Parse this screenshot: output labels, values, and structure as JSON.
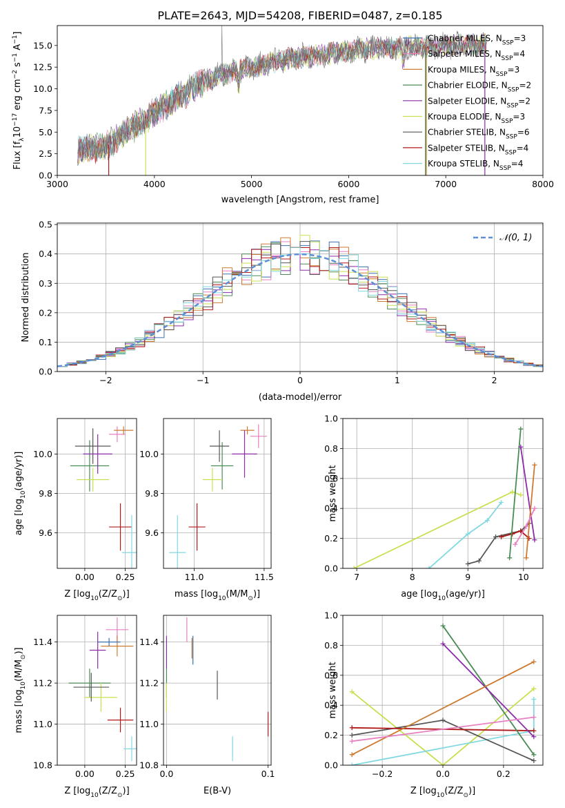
{
  "figure": {
    "title": "PLATE=2643, MJD=54208, FIBERID=0487, z=0.185"
  },
  "colors": {
    "chabrier_miles": "#3a6fb0",
    "salpeter_miles": "#e87fc0",
    "kroupa_miles": "#cc7a30",
    "chabrier_elodie": "#4a8a55",
    "salpeter_elodie": "#8a2aa8",
    "kroupa_elodie": "#c8e050",
    "chabrier_stelib": "#555555",
    "salpeter_stelib": "#b01818",
    "kroupa_stelib": "#80d8e0",
    "gauss": "#5b8fd6",
    "grid": "#b0b0b0"
  },
  "chart_data": [
    {
      "id": "spectrum",
      "type": "line",
      "xlabel": "wavelength [Angstrom, rest frame]",
      "ylabel": "Flux [f",
      "ylabel_sub": "λ",
      "ylabel_mid": "10",
      "ylabel_sup1": "−17",
      "ylabel_rest": " erg cm",
      "ylabel_sup2": "−2",
      "ylabel_rest2": " s",
      "ylabel_sup3": "−1",
      "ylabel_rest3": " A",
      "ylabel_sup4": "−1",
      "ylabel_end": "]",
      "xlim": [
        3000,
        8000
      ],
      "ylim": [
        0,
        17.3
      ],
      "xticks": [
        3000,
        4000,
        5000,
        6000,
        7000,
        8000
      ],
      "yticks": [
        0.0,
        2.5,
        5.0,
        7.5,
        10.0,
        12.5,
        15.0
      ],
      "ytick_labels": [
        "0.0",
        "2.5",
        "5.0",
        "7.5",
        "10.0",
        "12.5",
        "15.0"
      ],
      "continuum": {
        "x": [
          3200,
          3300,
          3500,
          3700,
          3900,
          4000,
          4200,
          4400,
          4600,
          4800,
          5000,
          5200,
          5400,
          5600,
          5800,
          6000,
          6200,
          6400,
          6600,
          6800,
          7000,
          7200,
          7400
        ],
        "y": [
          3.0,
          3.0,
          3.3,
          5.0,
          6.3,
          7.3,
          8.6,
          10.2,
          11.3,
          12.0,
          12.5,
          13.0,
          13.5,
          13.8,
          14.1,
          14.4,
          14.6,
          14.7,
          14.8,
          14.9,
          15.0,
          15.0,
          15.1
        ]
      },
      "legend": [
        {
          "imf": "Chabrier",
          "lib": "MILES",
          "n": "3",
          "color": "chabrier_miles"
        },
        {
          "imf": "Salpeter",
          "lib": "MILES",
          "n": "4",
          "color": "salpeter_miles"
        },
        {
          "imf": "Kroupa",
          "lib": "MILES",
          "n": "3",
          "color": "kroupa_miles"
        },
        {
          "imf": "Chabrier",
          "lib": "ELODIE",
          "n": "2",
          "color": "chabrier_elodie"
        },
        {
          "imf": "Salpeter",
          "lib": "ELODIE",
          "n": "2",
          "color": "salpeter_elodie"
        },
        {
          "imf": "Kroupa",
          "lib": "ELODIE",
          "n": "3",
          "color": "kroupa_elodie"
        },
        {
          "imf": "Chabrier",
          "lib": "STELIB",
          "n": "6",
          "color": "chabrier_stelib"
        },
        {
          "imf": "Salpeter",
          "lib": "STELIB",
          "n": "4",
          "color": "salpeter_stelib"
        },
        {
          "imf": "Kroupa",
          "lib": "STELIB",
          "n": "4",
          "color": "kroupa_stelib"
        }
      ],
      "legend_sub": "SSP",
      "legend_placement": "right"
    },
    {
      "id": "residuals",
      "type": "line",
      "xlabel": "(data-model)/error",
      "ylabel": "Normed distribution",
      "xlim": [
        -2.5,
        2.5
      ],
      "ylim": [
        0,
        0.505
      ],
      "xticks": [
        -2,
        -1,
        0,
        1,
        2
      ],
      "xtick_labels": [
        "−2",
        "−1",
        "0",
        "1",
        "2"
      ],
      "yticks": [
        0.0,
        0.1,
        0.2,
        0.3,
        0.4,
        0.5
      ],
      "ytick_labels": [
        "0.0",
        "0.1",
        "0.2",
        "0.3",
        "0.4",
        "0.5"
      ],
      "bin_width": 0.1,
      "legend_label": "𝒩(0, 1)",
      "legend_placement": "top-right"
    },
    {
      "id": "z_age",
      "type": "scatter",
      "xlabel": "Z [log",
      "xlabel_sub": "10",
      "xlabel_mid": "(Z/Z",
      "xlabel_sub2": "⊙",
      "xlabel_end": ")]",
      "ylabel": "age  [log",
      "ylabel_sub": "10",
      "ylabel_end": "(age/yr)]",
      "xlim": [
        -0.17,
        0.32
      ],
      "ylim": [
        9.42,
        10.18
      ],
      "xticks": [
        0.0,
        0.25
      ],
      "xtick_labels": [
        "0.00",
        "0.25"
      ],
      "yticks": [
        9.6,
        9.8,
        10.0
      ],
      "ytick_labels": [
        "9.6",
        "9.8",
        "10.0"
      ],
      "points": [
        {
          "color": "salpeter_miles",
          "x": 0.2,
          "xerr": 0.05,
          "y": 10.1,
          "yerr": 0.04
        },
        {
          "color": "kroupa_miles",
          "x": 0.24,
          "xerr": 0.06,
          "y": 10.12,
          "yerr": 0.02
        },
        {
          "color": "chabrier_elodie",
          "x": 0.03,
          "xerr": 0.12,
          "y": 9.94,
          "yerr": 0.13
        },
        {
          "color": "salpeter_elodie",
          "x": 0.08,
          "xerr": 0.09,
          "y": 10.0,
          "yerr": 0.1
        },
        {
          "color": "kroupa_elodie",
          "x": 0.05,
          "xerr": 0.1,
          "y": 9.87,
          "yerr": 0.06
        },
        {
          "color": "chabrier_stelib",
          "x": 0.05,
          "xerr": 0.11,
          "y": 10.04,
          "yerr": 0.09
        },
        {
          "color": "salpeter_stelib",
          "x": 0.22,
          "xerr": 0.07,
          "y": 9.63,
          "yerr": 0.12
        },
        {
          "color": "kroupa_stelib",
          "x": 0.29,
          "xerr": 0.06,
          "y": 9.5,
          "yerr": 0.19
        }
      ]
    },
    {
      "id": "mass_age",
      "type": "scatter",
      "xlabel": "mass [log",
      "xlabel_sub": "10",
      "xlabel_end": "(M/M",
      "xlabel_sub2": "⊙",
      "xlabel_end2": ")]",
      "xlim": [
        10.78,
        11.55
      ],
      "ylim": [
        9.42,
        10.18
      ],
      "xticks": [
        11.0,
        11.5
      ],
      "xtick_labels": [
        "11.0",
        "11.5"
      ],
      "yticks": [
        9.6,
        9.8,
        10.0
      ],
      "ytick_labels": [
        "9.6",
        "9.8",
        "10.0"
      ],
      "points": [
        {
          "color": "salpeter_miles",
          "x": 11.46,
          "xerr": 0.06,
          "y": 10.09,
          "yerr": 0.06
        },
        {
          "color": "kroupa_miles",
          "x": 11.38,
          "xerr": 0.05,
          "y": 10.12,
          "yerr": 0.02
        },
        {
          "color": "chabrier_elodie",
          "x": 11.2,
          "xerr": 0.08,
          "y": 9.94,
          "yerr": 0.12
        },
        {
          "color": "salpeter_elodie",
          "x": 11.36,
          "xerr": 0.09,
          "y": 10.0,
          "yerr": 0.12
        },
        {
          "color": "kroupa_elodie",
          "x": 11.13,
          "xerr": 0.07,
          "y": 9.87,
          "yerr": 0.06
        },
        {
          "color": "chabrier_stelib",
          "x": 11.18,
          "xerr": 0.07,
          "y": 10.04,
          "yerr": 0.08
        },
        {
          "color": "salpeter_stelib",
          "x": 11.02,
          "xerr": 0.06,
          "y": 9.63,
          "yerr": 0.12
        },
        {
          "color": "kroupa_stelib",
          "x": 10.88,
          "xerr": 0.06,
          "y": 9.5,
          "yerr": 0.19
        }
      ]
    },
    {
      "id": "weight_age",
      "type": "line",
      "xlabel": "age  [log",
      "xlabel_sub": "10",
      "xlabel_end": "(age/yr)]",
      "ylabel": "mass weight",
      "xlim": [
        6.75,
        10.35
      ],
      "ylim": [
        0,
        1.0
      ],
      "xticks": [
        7,
        8,
        9,
        10
      ],
      "xtick_labels": [
        "7",
        "8",
        "9",
        "10"
      ],
      "yticks": [
        0.0,
        0.2,
        0.4,
        0.6,
        0.8,
        1.0
      ],
      "ytick_labels": [
        "0.0",
        "0.2",
        "0.4",
        "0.6",
        "0.8",
        "1.0"
      ],
      "series": [
        {
          "color": "kroupa_elodie",
          "x": [
            6.95,
            9.8,
            9.95
          ],
          "y": [
            0.0,
            0.51,
            0.49
          ]
        },
        {
          "color": "kroupa_stelib",
          "x": [
            8.3,
            9.0,
            9.35,
            9.6
          ],
          "y": [
            0.0,
            0.23,
            0.32,
            0.44
          ]
        },
        {
          "color": "chabrier_stelib",
          "x": [
            9.0,
            9.2,
            9.5,
            9.95,
            10.1
          ],
          "y": [
            0.03,
            0.05,
            0.21,
            0.25,
            0.3
          ]
        },
        {
          "color": "salpeter_stelib",
          "x": [
            9.6,
            9.8,
            9.95,
            10.1
          ],
          "y": [
            0.21,
            0.23,
            0.25,
            0.2
          ]
        },
        {
          "color": "chabrier_elodie",
          "x": [
            9.75,
            9.95
          ],
          "y": [
            0.07,
            0.93
          ]
        },
        {
          "color": "salpeter_elodie",
          "x": [
            9.95,
            10.2
          ],
          "y": [
            0.81,
            0.19
          ]
        },
        {
          "color": "kroupa_miles",
          "x": [
            10.05,
            10.2
          ],
          "y": [
            0.07,
            0.69
          ]
        },
        {
          "color": "salpeter_miles",
          "x": [
            9.85,
            10.05,
            10.2
          ],
          "y": [
            0.16,
            0.28,
            0.4
          ]
        }
      ]
    },
    {
      "id": "z_mass",
      "type": "scatter",
      "xlabel": "Z [log",
      "xlabel_sub": "10",
      "xlabel_mid": "(Z/Z",
      "xlabel_sub2": "⊙",
      "xlabel_end": ")]",
      "ylabel": "mass [log",
      "ylabel_sub": "10",
      "ylabel_end": "(M/M",
      "ylabel_sub2": "⊙",
      "ylabel_end2": ")]",
      "xlim": [
        -0.17,
        0.32
      ],
      "ylim": [
        10.8,
        11.53
      ],
      "xticks": [
        0.0,
        0.25
      ],
      "xtick_labels": [
        "0.00",
        "0.25"
      ],
      "yticks": [
        10.8,
        11.0,
        11.2,
        11.4
      ],
      "ytick_labels": [
        "10.8",
        "11.0",
        "11.2",
        "11.4"
      ],
      "points": [
        {
          "color": "salpeter_miles",
          "x": 0.2,
          "xerr": 0.07,
          "y": 11.46,
          "yerr": 0.06
        },
        {
          "color": "kroupa_miles",
          "x": 0.2,
          "xerr": 0.1,
          "y": 11.38,
          "yerr": 0.05
        },
        {
          "color": "chabrier_miles",
          "x": 0.15,
          "xerr": 0.07,
          "y": 11.4,
          "yerr": 0.02
        },
        {
          "color": "chabrier_elodie",
          "x": 0.03,
          "xerr": 0.13,
          "y": 11.2,
          "yerr": 0.07
        },
        {
          "color": "salpeter_elodie",
          "x": 0.08,
          "xerr": 0.05,
          "y": 11.36,
          "yerr": 0.09
        },
        {
          "color": "kroupa_elodie",
          "x": 0.1,
          "xerr": 0.1,
          "y": 11.13,
          "yerr": 0.07
        },
        {
          "color": "chabrier_stelib",
          "x": 0.04,
          "xerr": 0.11,
          "y": 11.18,
          "yerr": 0.07
        },
        {
          "color": "salpeter_stelib",
          "x": 0.22,
          "xerr": 0.08,
          "y": 11.02,
          "yerr": 0.06
        },
        {
          "color": "kroupa_stelib",
          "x": 0.29,
          "xerr": 0.05,
          "y": 10.88,
          "yerr": 0.06
        }
      ]
    },
    {
      "id": "ebv_mass",
      "type": "scatter",
      "xlabel": "E(B-V)",
      "xlim": [
        -0.003,
        0.103
      ],
      "ylim": [
        10.8,
        11.53
      ],
      "xticks": [
        0.0,
        0.1
      ],
      "xtick_labels": [
        "0.0",
        "0.1"
      ],
      "yticks": [
        10.8,
        11.0,
        11.2,
        11.4
      ],
      "ytick_labels": [
        "10.8",
        "11.0",
        "11.2",
        "11.4"
      ],
      "points": [
        {
          "color": "salpeter_miles",
          "x": 0.02,
          "xerr": 0,
          "y": 11.46,
          "yerr": 0.06
        },
        {
          "color": "kroupa_miles",
          "x": 0.025,
          "xerr": 0,
          "y": 11.37,
          "yerr": 0.05
        },
        {
          "color": "chabrier_miles",
          "x": 0.026,
          "xerr": 0,
          "y": 11.36,
          "yerr": 0.07
        },
        {
          "color": "chabrier_elodie",
          "x": 0.0,
          "xerr": 0,
          "y": 11.2,
          "yerr": 0.07
        },
        {
          "color": "salpeter_elodie",
          "x": 0.0,
          "xerr": 0,
          "y": 11.35,
          "yerr": 0.08
        },
        {
          "color": "kroupa_elodie",
          "x": 0.0,
          "xerr": 0,
          "y": 11.13,
          "yerr": 0.07
        },
        {
          "color": "chabrier_stelib",
          "x": 0.05,
          "xerr": 0,
          "y": 11.19,
          "yerr": 0.07
        },
        {
          "color": "salpeter_stelib",
          "x": 0.1,
          "xerr": 0,
          "y": 11.0,
          "yerr": 0.06
        },
        {
          "color": "kroupa_stelib",
          "x": 0.065,
          "xerr": 0,
          "y": 10.88,
          "yerr": 0.06
        }
      ]
    },
    {
      "id": "weight_z",
      "type": "line",
      "xlabel": "Z [log",
      "xlabel_sub": "10",
      "xlabel_mid": "(Z/Z",
      "xlabel_sub2": "⊙",
      "xlabel_end": ")]",
      "ylabel": "mass weight",
      "xlim": [
        -0.33,
        0.33
      ],
      "ylim": [
        0,
        1.0
      ],
      "xticks": [
        -0.2,
        0.0,
        0.2
      ],
      "xtick_labels": [
        "−0.2",
        "0.0",
        "0.2"
      ],
      "yticks": [
        0.0,
        0.2,
        0.4,
        0.6,
        0.8,
        1.0
      ],
      "ytick_labels": [
        "0.0",
        "0.2",
        "0.4",
        "0.6",
        "0.8",
        "1.0"
      ],
      "series": [
        {
          "color": "kroupa_elodie",
          "x": [
            -0.3,
            0.0,
            0.3
          ],
          "y": [
            0.49,
            0.0,
            0.51
          ]
        },
        {
          "color": "kroupa_stelib",
          "x": [
            -0.3,
            0.3,
            0.3
          ],
          "y": [
            0.0,
            0.23,
            0.44
          ]
        },
        {
          "color": "chabrier_stelib",
          "x": [
            -0.3,
            0.0,
            0.3
          ],
          "y": [
            0.2,
            0.3,
            0.03
          ]
        },
        {
          "color": "salpeter_stelib",
          "x": [
            -0.3,
            0.3
          ],
          "y": [
            0.25,
            0.23
          ]
        },
        {
          "color": "chabrier_elodie",
          "x": [
            0.0,
            0.3
          ],
          "y": [
            0.93,
            0.07
          ]
        },
        {
          "color": "salpeter_elodie",
          "x": [
            0.0,
            0.3
          ],
          "y": [
            0.81,
            0.19
          ]
        },
        {
          "color": "kroupa_miles",
          "x": [
            -0.3,
            0.3
          ],
          "y": [
            0.07,
            0.69
          ]
        },
        {
          "color": "salpeter_miles",
          "x": [
            -0.3,
            0.3
          ],
          "y": [
            0.16,
            0.32
          ]
        }
      ]
    }
  ]
}
